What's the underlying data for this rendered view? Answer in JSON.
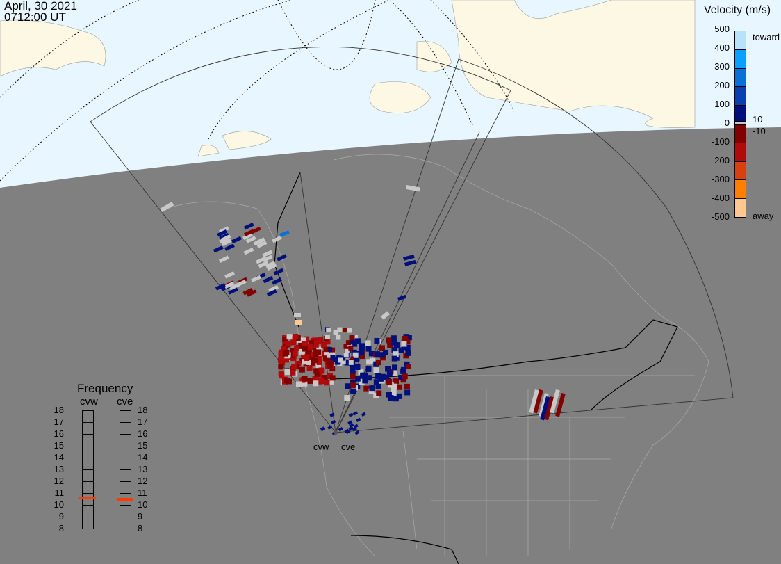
{
  "header": {
    "date": "April, 30 2021",
    "time": "0712:00 UT"
  },
  "colorbar": {
    "title": "Velocity (m/s)",
    "ticks": [
      "500",
      "400",
      "300",
      "200",
      "100",
      "0",
      "-100",
      "-200",
      "-300",
      "-400",
      "-500"
    ],
    "toward_label": "toward",
    "away_label": "away",
    "ground_scatter_upper": "10",
    "ground_scatter_lower": "-10",
    "colors_positive": [
      "#b8e2fa",
      "#0aa0ff",
      "#0a70d8",
      "#0a3fb0",
      "#00107a"
    ],
    "ground_scatter_color": "#c8c8c8",
    "colors_negative": [
      "#800000",
      "#b00a0a",
      "#d84010",
      "#ff8000",
      "#ffc890"
    ]
  },
  "frequency": {
    "title": "Frequency",
    "unit_range": [
      8,
      18
    ],
    "ticks": [
      "18",
      "17",
      "16",
      "15",
      "14",
      "13",
      "12",
      "11",
      "10",
      "9",
      "8"
    ],
    "radars": [
      {
        "name": "cvw",
        "value_mhz": 10.6
      },
      {
        "name": "cve",
        "value_mhz": 10.5
      }
    ],
    "marker_color": "#ff3b00"
  },
  "map": {
    "radar_labels": [
      "cvw",
      "cve"
    ],
    "day_ocean": "#e8f6ff",
    "day_land": "#fdf8e4",
    "night": "#808080"
  }
}
